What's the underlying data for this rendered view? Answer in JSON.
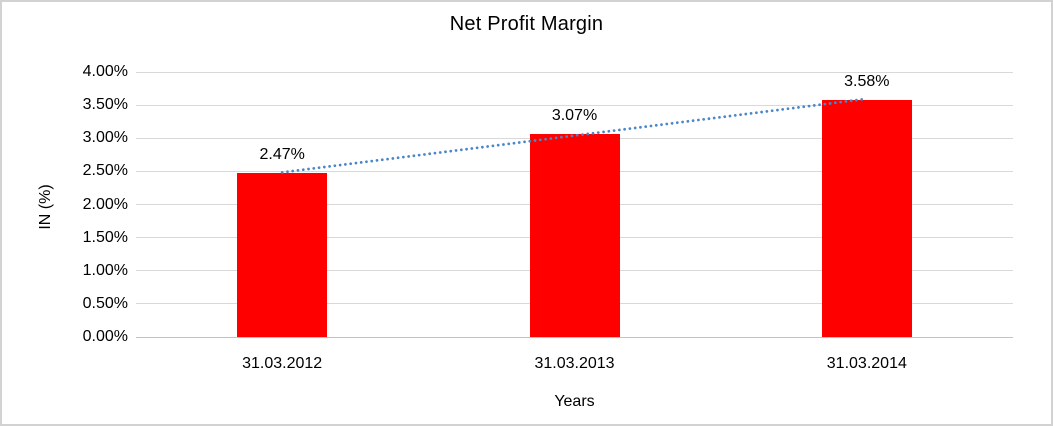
{
  "chart_data": {
    "type": "bar",
    "title": "Net Profit Margin",
    "xlabel": "Years",
    "ylabel": "IN (%)",
    "categories": [
      "31.03.2012",
      "31.03.2013",
      "31.03.2014"
    ],
    "values": [
      2.47,
      3.07,
      3.58
    ],
    "value_labels": [
      "2.47%",
      "3.07%",
      "3.58%"
    ],
    "ylim": [
      0,
      4
    ],
    "ytick_step": 0.5,
    "ytick_labels": [
      "0.00%",
      "0.50%",
      "1.00%",
      "1.50%",
      "2.00%",
      "2.50%",
      "3.00%",
      "3.50%",
      "4.00%"
    ],
    "grid": true,
    "legend": "none",
    "bar_color": "#ff0000",
    "gridline_color": "#d9d9d9",
    "axis_line_color": "#c3c3c3",
    "text_color": "#000000",
    "trendline": {
      "type": "linear",
      "style": "dotted",
      "color": "#4a86c8"
    }
  }
}
